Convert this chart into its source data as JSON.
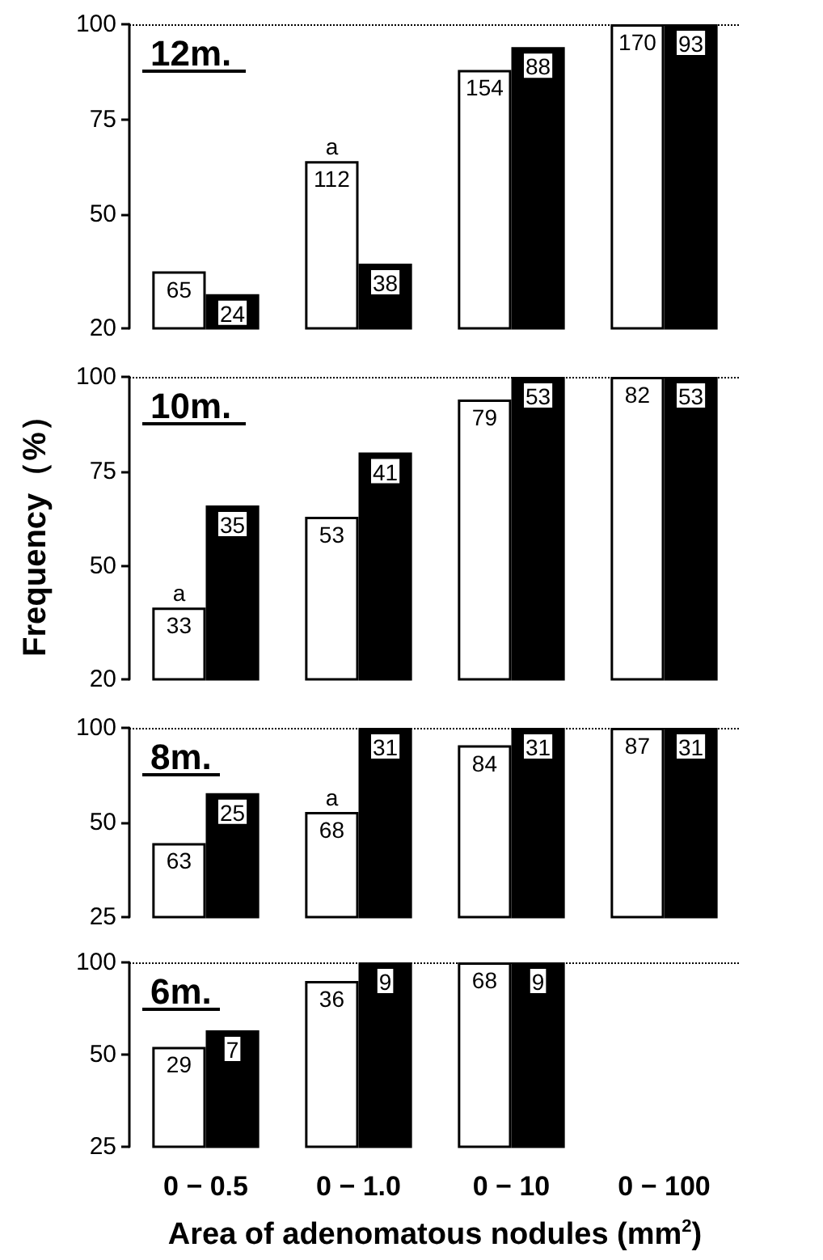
{
  "chart_data": [
    {
      "type": "bar",
      "title": "12m.",
      "categories": [
        "0 − 0.5",
        "0 − 1.0",
        "0 − 10",
        "0 − 100"
      ],
      "tick_labels": "y",
      "ylim": [
        20,
        100
      ],
      "yticks": [
        20,
        50,
        75,
        100
      ],
      "series": [
        {
          "color": "#ffffff",
          "values": [
            35,
            64,
            88,
            100
          ]
        },
        {
          "color": "#000000",
          "values": [
            29,
            37,
            94,
            100
          ]
        }
      ],
      "annotations": [
        {
          "text": "65",
          "x": "0 − 0.5",
          "y": 35
        },
        {
          "text": "112",
          "x": "0 − 1.0",
          "y": 64
        },
        {
          "text": "154",
          "x": "0 − 10",
          "y": 88
        },
        {
          "text": "170",
          "x": "0 − 100",
          "y": 100
        },
        {
          "text": "24",
          "x": "0 − 0.5",
          "y": 29
        },
        {
          "text": "38",
          "x": "0 − 1.0",
          "y": 37
        },
        {
          "text": "88",
          "x": "0 − 10",
          "y": 94
        },
        {
          "text": "93",
          "x": "0 − 100",
          "y": 100
        },
        {
          "text": "a",
          "x": "0 − 1.0",
          "y": 64
        }
      ],
      "ref_lines": [
        {
          "axis": "y",
          "value": 100,
          "line_style": "dotted"
        }
      ]
    },
    {
      "type": "bar",
      "title": "10m.",
      "ylabel": "Frequency（%）",
      "categories": [
        "0 − 0.5",
        "0 − 1.0",
        "0 − 10",
        "0 − 100"
      ],
      "tick_labels": "y",
      "ylim": [
        20,
        100
      ],
      "yticks": [
        20,
        50,
        75,
        100
      ],
      "series": [
        {
          "color": "#ffffff",
          "values": [
            39,
            63,
            94,
            100
          ]
        },
        {
          "color": "#000000",
          "values": [
            66,
            80,
            100,
            100
          ]
        }
      ],
      "annotations": [
        {
          "text": "33",
          "x": "0 − 0.5",
          "y": 39
        },
        {
          "text": "53",
          "x": "0 − 1.0",
          "y": 63
        },
        {
          "text": "79",
          "x": "0 − 10",
          "y": 94
        },
        {
          "text": "82",
          "x": "0 − 100",
          "y": 100
        },
        {
          "text": "35",
          "x": "0 − 0.5",
          "y": 66
        },
        {
          "text": "41",
          "x": "0 − 1.0",
          "y": 80
        },
        {
          "text": "53",
          "x": "0 − 10",
          "y": 100
        },
        {
          "text": "53",
          "x": "0 − 100",
          "y": 100
        },
        {
          "text": "a",
          "x": "0 − 0.5",
          "y": 39
        }
      ],
      "ref_lines": [
        {
          "axis": "y",
          "value": 100,
          "line_style": "dotted"
        }
      ]
    },
    {
      "type": "bar",
      "title": "8m.",
      "categories": [
        "0 − 0.5",
        "0 − 1.0",
        "0 − 10",
        "0 − 100"
      ],
      "tick_labels": "y",
      "log": "y",
      "ylim": [
        25,
        100
      ],
      "yticks": [
        25,
        50,
        100
      ],
      "series": [
        {
          "color": "#ffffff",
          "values": [
            43,
            54,
            88,
            100
          ]
        },
        {
          "color": "#000000",
          "values": [
            62,
            100,
            100,
            100
          ]
        }
      ],
      "annotations": [
        {
          "text": "63",
          "x": "0 − 0.5",
          "y": 43
        },
        {
          "text": "68",
          "x": "0 − 1.0",
          "y": 54
        },
        {
          "text": "84",
          "x": "0 − 10",
          "y": 88
        },
        {
          "text": "87",
          "x": "0 − 100",
          "y": 100
        },
        {
          "text": "25",
          "x": "0 − 0.5",
          "y": 62
        },
        {
          "text": "31",
          "x": "0 − 1.0",
          "y": 100
        },
        {
          "text": "31",
          "x": "0 − 10",
          "y": 100
        },
        {
          "text": "31",
          "x": "0 − 100",
          "y": 100
        },
        {
          "text": "a",
          "x": "0 − 1.0",
          "y": 54
        }
      ],
      "ref_lines": [
        {
          "axis": "y",
          "value": 100,
          "line_style": "dotted"
        }
      ]
    },
    {
      "type": "bar",
      "title": "6m.",
      "xlabel": "Area of adenomatous nodules (mm$^{2}$)",
      "categories": [
        "0 − 0.5",
        "0 − 1.0",
        "0 − 10",
        "0 − 100"
      ],
      "log": "y",
      "ylim": [
        25,
        100
      ],
      "yticks": [
        25,
        50,
        100
      ],
      "series": [
        {
          "color": "#ffffff",
          "values": [
            53,
            87,
            100,
            null
          ]
        },
        {
          "color": "#000000",
          "values": [
            60,
            100,
            100,
            null
          ]
        }
      ],
      "annotations": [
        {
          "text": "29",
          "x": "0 − 0.5",
          "y": 53
        },
        {
          "text": "36",
          "x": "0 − 1.0",
          "y": 87
        },
        {
          "text": "68",
          "x": "0 − 10",
          "y": 100
        },
        {
          "text": "7",
          "x": "0 − 0.5",
          "y": 60
        },
        {
          "text": "9",
          "x": "0 − 1.0",
          "y": 100
        },
        {
          "text": "9",
          "x": "0 − 10",
          "y": 100
        }
      ],
      "ref_lines": [
        {
          "axis": "y",
          "value": 100,
          "line_style": "dotted"
        }
      ]
    }
  ]
}
